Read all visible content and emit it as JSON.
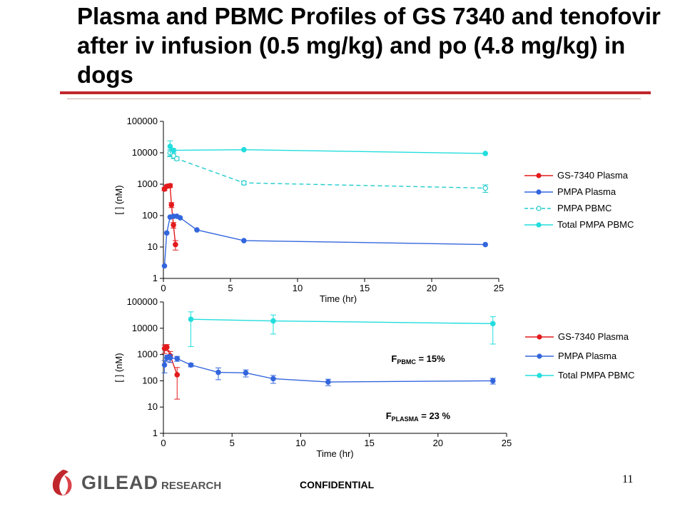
{
  "slide": {
    "title": "Plasma and PBMC Profiles of GS 7340 and tenofovir after iv infusion (0.5 mg/kg) and po (4.8 mg/kg) in dogs",
    "footer_brand": "GILEAD",
    "footer_sub": "RESEARCH",
    "confidential": "CONFIDENTIAL",
    "page_number": "11",
    "accent_color": "#c0272d",
    "logo_icon": "gilead-logo-icon"
  },
  "chart_data": [
    {
      "type": "line",
      "title": "",
      "xlabel": "Time (hr)",
      "ylabel": "[    ] (nM)",
      "xlim": [
        0,
        25
      ],
      "ylim": [
        1,
        100000
      ],
      "yscale": "log",
      "xticks": [
        0,
        5,
        10,
        15,
        20,
        25
      ],
      "yticks": [
        1,
        10,
        100,
        1000,
        10000,
        100000
      ],
      "legend_position": "right",
      "series": [
        {
          "name": "GS-7340 Plasma",
          "color": "#e31a1c",
          "style": "solid",
          "marker": "filled",
          "x": [
            0.08,
            0.25,
            0.5,
            0.6,
            0.75,
            0.9
          ],
          "y": [
            700,
            850,
            900,
            220,
            50,
            12
          ],
          "err": [
            80,
            100,
            120,
            40,
            10,
            4
          ]
        },
        {
          "name": "PMPA Plasma",
          "color": "#3366dd",
          "style": "solid",
          "marker": "filled",
          "x": [
            0.08,
            0.25,
            0.5,
            0.75,
            1,
            1.25,
            2.5,
            6,
            24
          ],
          "y": [
            2.5,
            28,
            90,
            95,
            95,
            85,
            35,
            16,
            12
          ],
          "err": [
            0,
            0,
            0,
            0,
            0,
            0,
            0,
            0,
            0
          ]
        },
        {
          "name": "PMPA PBMC",
          "color": "#22cccc",
          "style": "dashed",
          "marker": "open",
          "x": [
            0.5,
            0.75,
            1,
            6,
            24
          ],
          "y": [
            10000,
            8000,
            6500,
            1100,
            750
          ],
          "err": [
            2500,
            1500,
            800,
            150,
            200
          ]
        },
        {
          "name": "Total PMPA PBMC",
          "color": "#22dddd",
          "style": "solid",
          "marker": "filled",
          "x": [
            0.5,
            0.75,
            6,
            24
          ],
          "y": [
            16000,
            12000,
            12500,
            9500
          ],
          "err": [
            8000,
            1500,
            0,
            0
          ]
        }
      ]
    },
    {
      "type": "line",
      "title": "",
      "xlabel": "Time (hr)",
      "ylabel": "[    ] (nM)",
      "xlim": [
        0,
        25
      ],
      "ylim": [
        1,
        100000
      ],
      "yscale": "log",
      "xticks": [
        0,
        5,
        10,
        15,
        20,
        25
      ],
      "yticks": [
        1,
        10,
        100,
        1000,
        10000,
        100000
      ],
      "legend_position": "right",
      "annotations": [
        {
          "main": "F",
          "sub": "PBMC",
          "rest": " = 15%",
          "x": 16.6,
          "y": 520
        },
        {
          "main": "F",
          "sub": "PLASMA",
          "rest": " = 23 %",
          "x": 16.2,
          "y": 3.5
        }
      ],
      "series": [
        {
          "name": "GS-7340 Plasma",
          "color": "#e31a1c",
          "style": "solid",
          "marker": "filled",
          "x": [
            0.08,
            0.25,
            0.5,
            1
          ],
          "y": [
            1700,
            1900,
            900,
            170
          ],
          "err": [
            600,
            500,
            400,
            150
          ]
        },
        {
          "name": "PMPA Plasma",
          "color": "#3366dd",
          "style": "solid",
          "marker": "filled",
          "x": [
            0.08,
            0.25,
            0.5,
            1,
            2,
            4,
            6,
            8,
            12,
            24
          ],
          "y": [
            400,
            750,
            750,
            700,
            400,
            210,
            200,
            120,
            90,
            100
          ],
          "err": [
            200,
            200,
            250,
            150,
            60,
            100,
            60,
            40,
            25,
            25
          ]
        },
        {
          "name": "Total PMPA PBMC",
          "color": "#22dddd",
          "style": "solid",
          "marker": "filled",
          "x": [
            2,
            8,
            24
          ],
          "y": [
            22000,
            19000,
            15000
          ],
          "err": [
            20000,
            13000,
            12500
          ]
        }
      ]
    }
  ]
}
